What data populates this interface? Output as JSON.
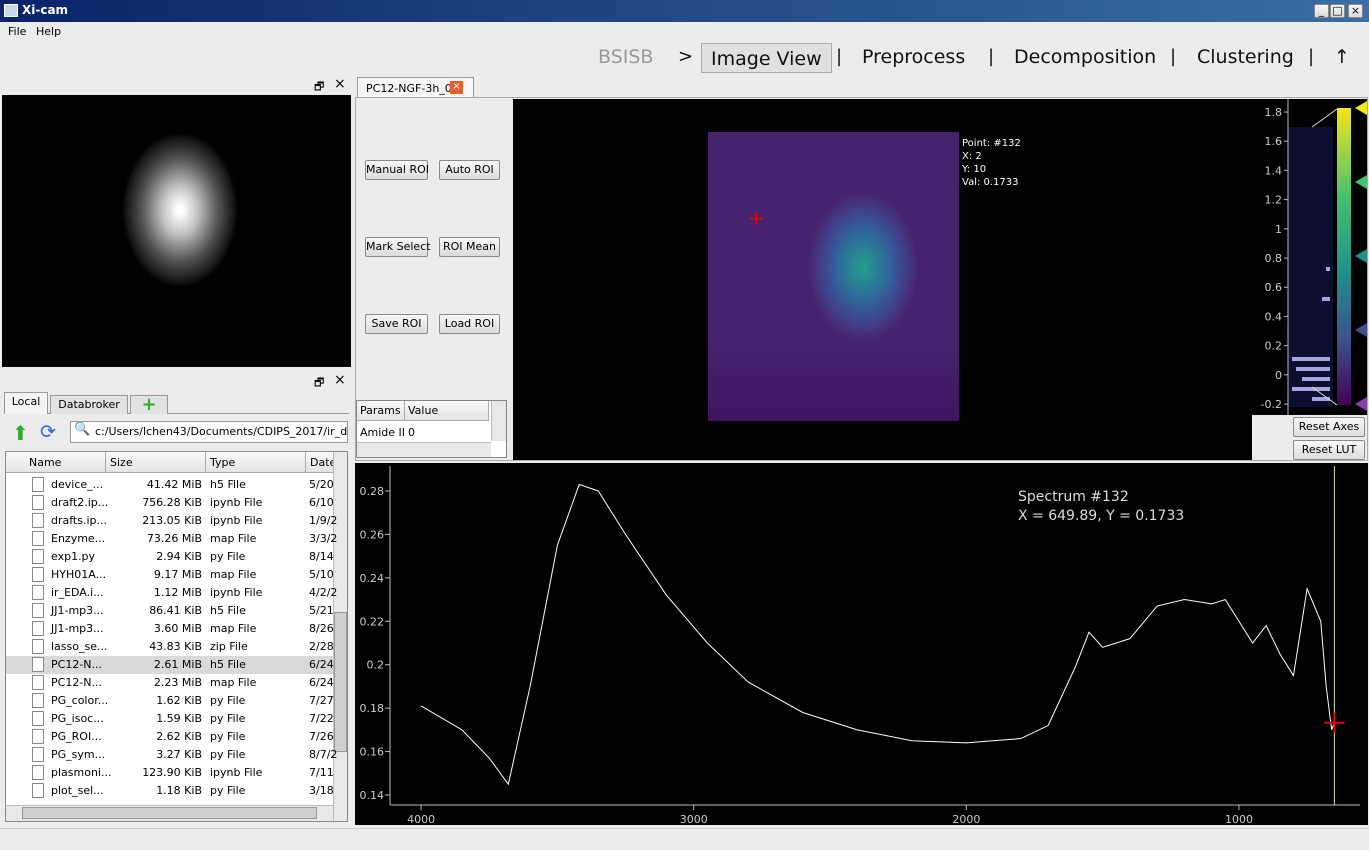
{
  "window": {
    "title": "Xi-cam",
    "menu": [
      "File",
      "Help"
    ]
  },
  "nav": {
    "items": [
      "BSISB",
      ">",
      "Image View",
      "|",
      "Preprocess",
      "|",
      "Decomposition",
      "|",
      "Clustering",
      "|",
      "↑"
    ]
  },
  "file_browser": {
    "tabs": [
      "Local",
      "Databroker"
    ],
    "path": "c:/Users/lchen43/Documents/CDIPS_2017/ir_data",
    "columns": [
      "Name",
      "Size",
      "Type",
      "Date"
    ],
    "rows": [
      [
        "device_...",
        "41.42 MiB",
        "h5 File",
        "5/20"
      ],
      [
        "draft2.ip...",
        "756.28 KiB",
        "ipynb File",
        "6/10"
      ],
      [
        "drafts.ip...",
        "213.05 KiB",
        "ipynb File",
        "1/9/2"
      ],
      [
        "Enzyme...",
        "73.26 MiB",
        "map File",
        "3/3/2"
      ],
      [
        "exp1.py",
        "2.94 KiB",
        "py File",
        "8/14"
      ],
      [
        "HYH01A...",
        "9.17 MiB",
        "map File",
        "5/10"
      ],
      [
        "ir_EDA.i...",
        "1.12 MiB",
        "ipynb File",
        "4/2/2"
      ],
      [
        "JJ1-mp3...",
        "86.41 KiB",
        "h5 File",
        "5/21"
      ],
      [
        "JJ1-mp3...",
        "3.60 MiB",
        "map File",
        "8/26"
      ],
      [
        "lasso_se...",
        "43.83 KiB",
        "zip File",
        "2/28"
      ],
      [
        "PC12-N...",
        "2.61 MiB",
        "h5 File",
        "6/24"
      ],
      [
        "PC12-N...",
        "2.23 MiB",
        "map File",
        "6/24"
      ],
      [
        "PG_color...",
        "1.62 KiB",
        "py File",
        "7/27"
      ],
      [
        "PG_isoc...",
        "1.59 KiB",
        "py File",
        "7/22"
      ],
      [
        "PG_ROI...",
        "2.62 KiB",
        "py File",
        "7/26"
      ],
      [
        "PG_sym...",
        "3.27 KiB",
        "py File",
        "8/7/2"
      ],
      [
        "plasmoni...",
        "123.90 KiB",
        "ipynb File",
        "7/11"
      ],
      [
        "plot_sel...",
        "1.18 KiB",
        "py File",
        "3/18"
      ]
    ]
  },
  "image_tab": {
    "tab": "PC12-NGF-3h_0",
    "buttons": [
      "Manual ROI",
      "Auto ROI",
      "Mark Select",
      "ROI Mean",
      "Save ROI",
      "Load ROI"
    ],
    "params_columns": [
      "Params",
      "Value"
    ],
    "params_rows": [
      [
        "Amide II",
        "0"
      ]
    ],
    "point_info": [
      "Point: #132",
      "X: 2",
      "Y: 10",
      "Val: 0.1733"
    ]
  },
  "histogram": {
    "ylim": [
      -0.275,
      1.889
    ],
    "yticks": [
      -0.2,
      0,
      0.2,
      0.4,
      0.6,
      0.8,
      1,
      1.2,
      1.4,
      1.6,
      1.8
    ],
    "buttons": [
      "Reset Axes",
      "Reset LUT"
    ]
  },
  "chart_data": {
    "type": "line",
    "annotations": [
      "Spectrum #132",
      "X = 649.89, Y = 0.1733"
    ],
    "x": [
      4000,
      3850,
      3750,
      3680,
      3600,
      3500,
      3420,
      3350,
      3250,
      3100,
      2950,
      2800,
      2600,
      2400,
      2200,
      2000,
      1800,
      1700,
      1600,
      1550,
      1500,
      1400,
      1300,
      1200,
      1100,
      1050,
      1000,
      950,
      900,
      850,
      800,
      750,
      700,
      680,
      660,
      649.89
    ],
    "values": [
      0.181,
      0.17,
      0.157,
      0.145,
      0.19,
      0.255,
      0.283,
      0.28,
      0.26,
      0.232,
      0.21,
      0.192,
      0.178,
      0.17,
      0.165,
      0.164,
      0.166,
      0.172,
      0.199,
      0.215,
      0.208,
      0.212,
      0.227,
      0.23,
      0.228,
      0.23,
      0.22,
      0.21,
      0.218,
      0.205,
      0.195,
      0.235,
      0.22,
      0.19,
      0.17,
      0.1733
    ],
    "color": "#ffffff",
    "xlim": [
      4114,
      556
    ],
    "ylim": [
      0.1354,
      0.2915
    ],
    "xticks": [
      4000,
      3000,
      2000,
      1000
    ],
    "yticks": [
      0.14,
      0.16,
      0.18,
      0.2,
      0.22,
      0.24,
      0.26,
      0.28
    ]
  }
}
